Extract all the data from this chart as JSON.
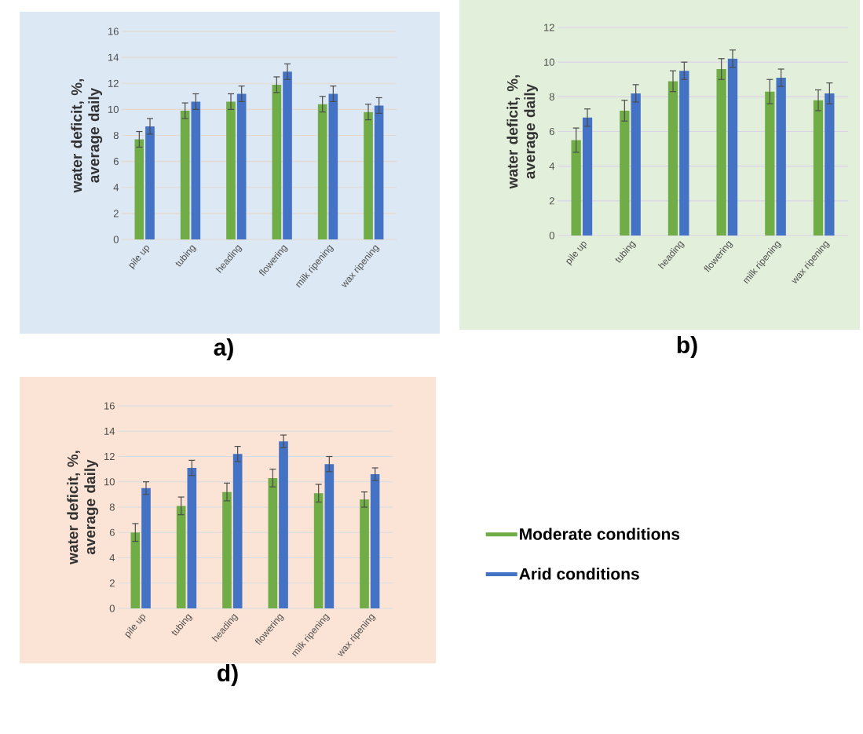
{
  "chart_data": [
    {
      "type": "bar",
      "ylabel": "water deficit, %, average daily",
      "annotations": [
        "a)"
      ],
      "categories": [
        "pile up",
        "tubing",
        "heading",
        "flowering",
        "milk ripening",
        "wax ripening"
      ],
      "ylim": [
        0,
        16
      ],
      "yticks": [
        0,
        2,
        4,
        6,
        8,
        10,
        12,
        14,
        16
      ],
      "grid": "y",
      "series": [
        {
          "color": "#70ad47",
          "values": [
            7.7,
            9.9,
            10.6,
            11.9,
            10.4,
            9.8
          ],
          "errors": [
            0.6,
            0.6,
            0.6,
            0.6,
            0.6,
            0.6
          ]
        },
        {
          "color": "#4472c4",
          "values": [
            8.7,
            10.6,
            11.2,
            12.9,
            11.2,
            10.3
          ],
          "errors": [
            0.6,
            0.6,
            0.6,
            0.6,
            0.6,
            0.6
          ]
        }
      ]
    },
    {
      "type": "bar",
      "ylabel": "water deficit, %, average daily",
      "annotations": [
        "b)"
      ],
      "categories": [
        "pile up",
        "tubing",
        "heading",
        "flowering",
        "milk ripening",
        "wax ripening"
      ],
      "ylim": [
        0,
        12
      ],
      "yticks": [
        0,
        2,
        4,
        6,
        8,
        10,
        12
      ],
      "grid": "y",
      "series": [
        {
          "color": "#70ad47",
          "values": [
            5.5,
            7.2,
            8.9,
            9.6,
            8.3,
            7.8
          ],
          "errors": [
            0.7,
            0.6,
            0.6,
            0.6,
            0.7,
            0.6
          ]
        },
        {
          "color": "#4472c4",
          "values": [
            6.8,
            8.2,
            9.5,
            10.2,
            9.1,
            8.2
          ],
          "errors": [
            0.5,
            0.5,
            0.5,
            0.5,
            0.5,
            0.6
          ]
        }
      ]
    },
    {
      "type": "bar",
      "ylabel": "water deficit, %, average daily",
      "annotations": [
        "d)"
      ],
      "categories": [
        "pile up",
        "tubing",
        "heading",
        "flowering",
        "milk ripening",
        "wax ripening"
      ],
      "ylim": [
        0,
        16
      ],
      "yticks": [
        0,
        2,
        4,
        6,
        8,
        10,
        12,
        14,
        16
      ],
      "grid": "y",
      "legend": "right",
      "series": [
        {
          "name": "Moderate conditions",
          "color": "#70ad47",
          "values": [
            6.0,
            8.1,
            9.2,
            10.3,
            9.1,
            8.6
          ],
          "errors": [
            0.7,
            0.7,
            0.7,
            0.7,
            0.7,
            0.6
          ]
        },
        {
          "name": "Arid conditions",
          "color": "#4472c4",
          "values": [
            9.5,
            11.1,
            12.2,
            13.2,
            11.4,
            10.6
          ],
          "errors": [
            0.5,
            0.6,
            0.6,
            0.5,
            0.6,
            0.5
          ]
        }
      ]
    }
  ]
}
